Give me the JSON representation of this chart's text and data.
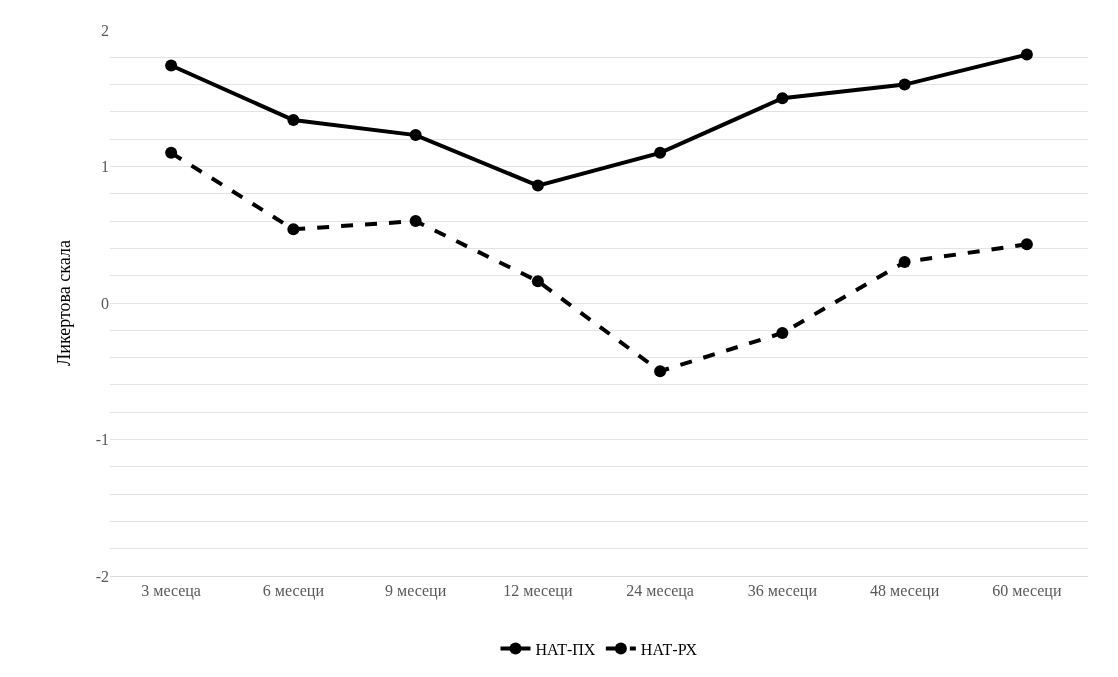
{
  "chart_data": {
    "type": "line",
    "ylabel": "Ликертова скала",
    "categories": [
      "3 месеца",
      "6 месеци",
      "9 месеци",
      "12 месеци",
      "24 месеца",
      "36 месеци",
      "48 месеци",
      "60 месеци"
    ],
    "series": [
      {
        "name": "НАТ-ПХ",
        "color": "#000000",
        "line_style": "solid",
        "values": [
          1.74,
          1.34,
          1.23,
          0.86,
          1.1,
          1.5,
          1.6,
          1.82
        ]
      },
      {
        "name": "НАТ-РХ",
        "color": "#000000",
        "line_style": "dashed",
        "values": [
          1.1,
          0.54,
          0.6,
          0.16,
          -0.5,
          -0.22,
          0.3,
          0.43
        ]
      }
    ],
    "ylim": [
      -2,
      2
    ],
    "yticks": [
      -2,
      {
        "value": -1.8,
        "label": null
      },
      {
        "value": -1.6,
        "label": null
      },
      {
        "value": -1.4,
        "label": null
      },
      {
        "value": -1.2,
        "label": null
      },
      -1,
      {
        "value": -0.8,
        "label": null
      },
      {
        "value": -0.6,
        "label": null
      },
      {
        "value": -0.4,
        "label": null
      },
      {
        "value": -0.2,
        "label": null
      },
      0,
      {
        "value": 0.2,
        "label": null
      },
      {
        "value": 0.4,
        "label": null
      },
      {
        "value": 0.6,
        "label": null
      },
      {
        "value": 0.8,
        "label": null
      },
      1,
      {
        "value": 1.2,
        "label": null
      },
      {
        "value": 1.4,
        "label": null
      },
      {
        "value": 1.6,
        "label": null
      },
      {
        "value": 1.8,
        "label": null
      },
      2
    ],
    "grid": "y",
    "legend": "bottom",
    "marker": "circle"
  }
}
